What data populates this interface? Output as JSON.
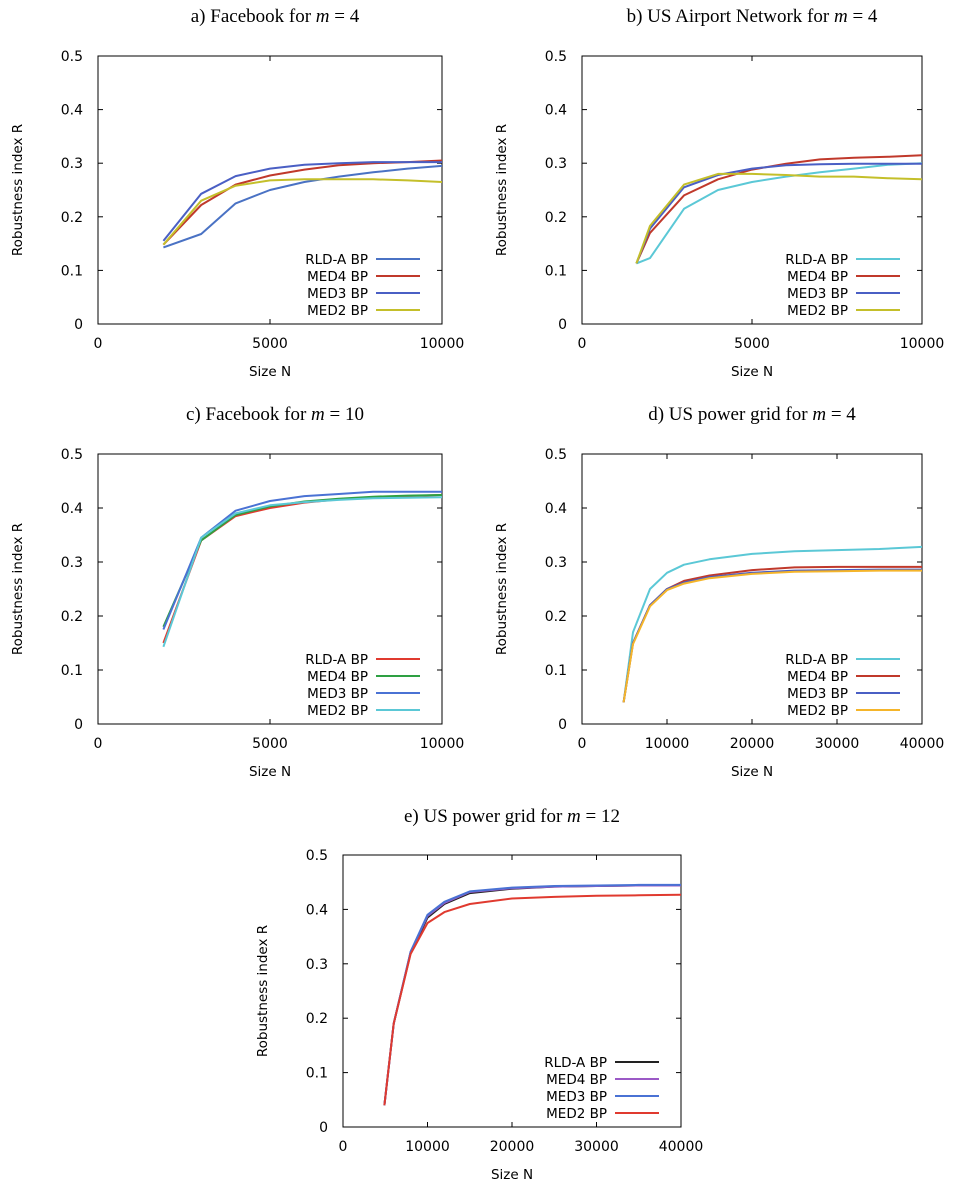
{
  "chart_data": [
    {
      "type": "line",
      "title_prefix": "a) Facebook for ",
      "title_math": "m",
      "title_suffix": " = 4",
      "xlabel": "Size N",
      "ylabel": "Robustness index R",
      "xlim": [
        0,
        10000
      ],
      "ylim": [
        0,
        0.5
      ],
      "xticks": [
        0,
        5000,
        10000
      ],
      "yticks": [
        0,
        0.1,
        0.2,
        0.3,
        0.4,
        0.5
      ],
      "legend_position": "bottom-right",
      "series": [
        {
          "name": "RLD-A BP",
          "color": "#4a72c4",
          "x": [
            1900,
            3000,
            4000,
            5000,
            6000,
            7000,
            8000,
            9000,
            10000
          ],
          "y": [
            0.143,
            0.168,
            0.225,
            0.25,
            0.265,
            0.275,
            0.283,
            0.29,
            0.295
          ]
        },
        {
          "name": "MED4 BP",
          "color": "#c0392b",
          "x": [
            1900,
            3000,
            4000,
            5000,
            6000,
            7000,
            8000,
            9000,
            10000
          ],
          "y": [
            0.148,
            0.222,
            0.26,
            0.277,
            0.288,
            0.296,
            0.3,
            0.302,
            0.305
          ]
        },
        {
          "name": "MED3 BP",
          "color": "#4a5fc4",
          "x": [
            1900,
            3000,
            4000,
            5000,
            6000,
            7000,
            8000,
            9000,
            10000
          ],
          "y": [
            0.155,
            0.243,
            0.276,
            0.29,
            0.297,
            0.3,
            0.302,
            0.302,
            0.302
          ]
        },
        {
          "name": "MED2 BP",
          "color": "#c4bf2a",
          "x": [
            1900,
            3000,
            4000,
            5000,
            6000,
            7000,
            8000,
            9000,
            10000
          ],
          "y": [
            0.148,
            0.23,
            0.258,
            0.268,
            0.27,
            0.27,
            0.27,
            0.268,
            0.265
          ]
        }
      ]
    },
    {
      "type": "line",
      "title_prefix": "b) US Airport Network for ",
      "title_math": "m",
      "title_suffix": " = 4",
      "xlabel": "Size N",
      "ylabel": "Robustness index R",
      "xlim": [
        0,
        10000
      ],
      "ylim": [
        0,
        0.5
      ],
      "xticks": [
        0,
        5000,
        10000
      ],
      "yticks": [
        0,
        0.1,
        0.2,
        0.3,
        0.4,
        0.5
      ],
      "legend_position": "bottom-right",
      "series": [
        {
          "name": "RLD-A BP",
          "color": "#5bc8d6",
          "x": [
            1600,
            2000,
            3000,
            4000,
            5000,
            6000,
            7000,
            8000,
            9000,
            10000
          ],
          "y": [
            0.113,
            0.123,
            0.215,
            0.25,
            0.265,
            0.275,
            0.283,
            0.29,
            0.297,
            0.3
          ]
        },
        {
          "name": "MED4 BP",
          "color": "#c0392b",
          "x": [
            1600,
            2000,
            3000,
            4000,
            5000,
            6000,
            7000,
            8000,
            9000,
            10000
          ],
          "y": [
            0.113,
            0.17,
            0.24,
            0.27,
            0.288,
            0.299,
            0.307,
            0.31,
            0.312,
            0.315
          ]
        },
        {
          "name": "MED3 BP",
          "color": "#4a5fc4",
          "x": [
            1600,
            2000,
            3000,
            4000,
            5000,
            6000,
            7000,
            8000,
            9000,
            10000
          ],
          "y": [
            0.113,
            0.178,
            0.255,
            0.278,
            0.29,
            0.296,
            0.298,
            0.299,
            0.299,
            0.299
          ]
        },
        {
          "name": "MED2 BP",
          "color": "#c4bf2a",
          "x": [
            1600,
            2000,
            3000,
            4000,
            5000,
            6000,
            7000,
            8000,
            9000,
            10000
          ],
          "y": [
            0.113,
            0.183,
            0.26,
            0.28,
            0.28,
            0.278,
            0.275,
            0.275,
            0.272,
            0.27
          ]
        }
      ]
    },
    {
      "type": "line",
      "title_prefix": "c) Facebook for ",
      "title_math": "m",
      "title_suffix": " = 10",
      "xlabel": "Size N",
      "ylabel": "Robustness index R",
      "xlim": [
        0,
        10000
      ],
      "ylim": [
        0,
        0.5
      ],
      "xticks": [
        0,
        5000,
        10000
      ],
      "yticks": [
        0,
        0.1,
        0.2,
        0.3,
        0.4,
        0.5
      ],
      "legend_position": "bottom-right",
      "series": [
        {
          "name": "RLD-A BP",
          "color": "#e03a2f",
          "x": [
            1900,
            3000,
            4000,
            5000,
            6000,
            7000,
            8000,
            9000,
            10000
          ],
          "y": [
            0.15,
            0.34,
            0.385,
            0.4,
            0.41,
            0.416,
            0.42,
            0.422,
            0.424
          ]
        },
        {
          "name": "MED4 BP",
          "color": "#2ea043",
          "x": [
            1900,
            3000,
            4000,
            5000,
            6000,
            7000,
            8000,
            9000,
            10000
          ],
          "y": [
            0.18,
            0.34,
            0.387,
            0.403,
            0.412,
            0.417,
            0.421,
            0.423,
            0.424
          ]
        },
        {
          "name": "MED3 BP",
          "color": "#4a72d4",
          "x": [
            1900,
            3000,
            4000,
            5000,
            6000,
            7000,
            8000,
            9000,
            10000
          ],
          "y": [
            0.175,
            0.345,
            0.395,
            0.413,
            0.422,
            0.426,
            0.43,
            0.43,
            0.43
          ]
        },
        {
          "name": "MED2 BP",
          "color": "#5bc8d6",
          "x": [
            1900,
            3000,
            4000,
            5000,
            6000,
            7000,
            8000,
            9000,
            10000
          ],
          "y": [
            0.143,
            0.345,
            0.39,
            0.405,
            0.411,
            0.415,
            0.418,
            0.419,
            0.42
          ]
        }
      ]
    },
    {
      "type": "line",
      "title_prefix": "d) US power grid for ",
      "title_math": "m",
      "title_suffix": " = 4",
      "xlabel": "Size N",
      "ylabel": "Robustness index R",
      "xlim": [
        0,
        40000
      ],
      "ylim": [
        0,
        0.5
      ],
      "xticks": [
        0,
        10000,
        20000,
        30000,
        40000
      ],
      "yticks": [
        0,
        0.1,
        0.2,
        0.3,
        0.4,
        0.5
      ],
      "legend_position": "bottom-right",
      "series": [
        {
          "name": "RLD-A BP",
          "color": "#5bc8d6",
          "x": [
            4900,
            6000,
            8000,
            10000,
            12000,
            15000,
            20000,
            25000,
            30000,
            35000,
            40000
          ],
          "y": [
            0.04,
            0.17,
            0.25,
            0.28,
            0.295,
            0.305,
            0.315,
            0.32,
            0.322,
            0.324,
            0.328
          ]
        },
        {
          "name": "MED4 BP",
          "color": "#c0392b",
          "x": [
            4900,
            6000,
            8000,
            10000,
            12000,
            15000,
            20000,
            25000,
            30000,
            35000,
            40000
          ],
          "y": [
            0.04,
            0.15,
            0.22,
            0.25,
            0.265,
            0.275,
            0.285,
            0.29,
            0.291,
            0.291,
            0.291
          ]
        },
        {
          "name": "MED3 BP",
          "color": "#4a5fc4",
          "x": [
            4900,
            6000,
            8000,
            10000,
            12000,
            15000,
            20000,
            25000,
            30000,
            35000,
            40000
          ],
          "y": [
            0.04,
            0.15,
            0.22,
            0.25,
            0.262,
            0.272,
            0.28,
            0.284,
            0.285,
            0.286,
            0.286
          ]
        },
        {
          "name": "MED2 BP",
          "color": "#f5b52a",
          "x": [
            4900,
            6000,
            8000,
            10000,
            12000,
            15000,
            20000,
            25000,
            30000,
            35000,
            40000
          ],
          "y": [
            0.04,
            0.148,
            0.218,
            0.248,
            0.26,
            0.27,
            0.278,
            0.282,
            0.283,
            0.284,
            0.284
          ]
        }
      ]
    },
    {
      "type": "line",
      "title_prefix": "e) US power grid for ",
      "title_math": "m",
      "title_suffix": " = 12",
      "xlabel": "Size N",
      "ylabel": "Robustness index R",
      "xlim": [
        0,
        40000
      ],
      "ylim": [
        0,
        0.5
      ],
      "xticks": [
        0,
        10000,
        20000,
        30000,
        40000
      ],
      "yticks": [
        0,
        0.1,
        0.2,
        0.3,
        0.4,
        0.5
      ],
      "legend_position": "bottom-right",
      "series": [
        {
          "name": "RLD-A BP",
          "color": "#222222",
          "x": [
            4900,
            6000,
            8000,
            10000,
            12000,
            15000,
            20000,
            25000,
            30000,
            35000,
            40000
          ],
          "y": [
            0.04,
            0.19,
            0.32,
            0.385,
            0.41,
            0.43,
            0.438,
            0.442,
            0.443,
            0.444,
            0.444
          ]
        },
        {
          "name": "MED4 BP",
          "color": "#9b59c6",
          "x": [
            4900,
            6000,
            8000,
            10000,
            12000,
            15000,
            20000,
            25000,
            30000,
            35000,
            40000
          ],
          "y": [
            0.04,
            0.19,
            0.322,
            0.388,
            0.412,
            0.432,
            0.439,
            0.442,
            0.443,
            0.444,
            0.444
          ]
        },
        {
          "name": "MED3 BP",
          "color": "#4a72d4",
          "x": [
            4900,
            6000,
            8000,
            10000,
            12000,
            15000,
            20000,
            25000,
            30000,
            35000,
            40000
          ],
          "y": [
            0.04,
            0.19,
            0.322,
            0.39,
            0.414,
            0.433,
            0.44,
            0.443,
            0.444,
            0.445,
            0.445
          ]
        },
        {
          "name": "MED2 BP",
          "color": "#e03a2f",
          "x": [
            4900,
            6000,
            8000,
            10000,
            12000,
            15000,
            20000,
            25000,
            30000,
            35000,
            40000
          ],
          "y": [
            0.04,
            0.19,
            0.318,
            0.375,
            0.395,
            0.41,
            0.42,
            0.423,
            0.425,
            0.426,
            0.427
          ]
        }
      ]
    }
  ]
}
